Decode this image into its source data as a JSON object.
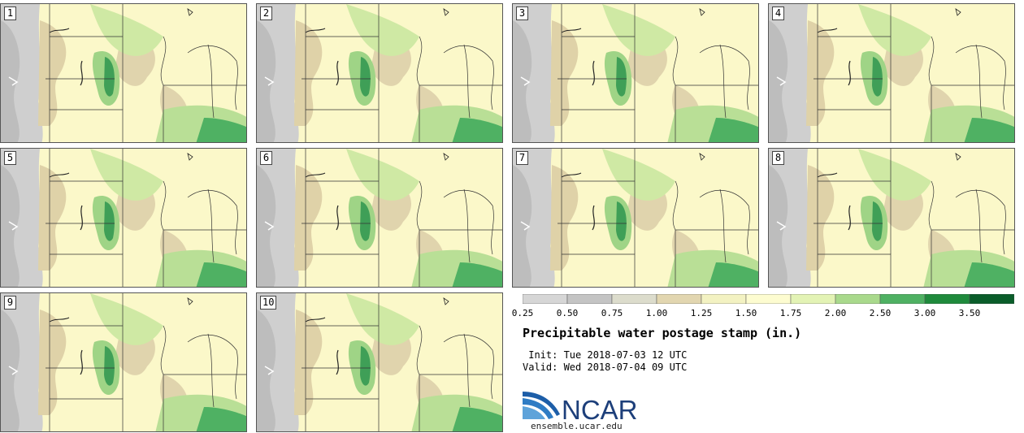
{
  "panels": [
    {
      "label": "1"
    },
    {
      "label": "2"
    },
    {
      "label": "3"
    },
    {
      "label": "4"
    },
    {
      "label": "5"
    },
    {
      "label": "6"
    },
    {
      "label": "7"
    },
    {
      "label": "8"
    },
    {
      "label": "9"
    },
    {
      "label": "10"
    }
  ],
  "legend": {
    "ticks": [
      "0.25",
      "0.50",
      "0.75",
      "1.00",
      "1.25",
      "1.50",
      "1.75",
      "2.00",
      "2.50",
      "3.00",
      "3.50"
    ],
    "colors": [
      "#d6d6d6",
      "#c4c4c4",
      "#dcdccc",
      "#e2d6b0",
      "#f3f2c2",
      "#fdfcd0",
      "#e3f3b5",
      "#a9d98c",
      "#4fb163",
      "#1f8a3c",
      "#0a5d2a",
      "#1c35a8"
    ]
  },
  "title": "Precipitable water postage stamp (in.)",
  "init": " Init: Tue 2018-07-03 12 UTC",
  "valid": "Valid: Wed 2018-07-04 09 UTC",
  "logo": {
    "name": "NCAR",
    "url": "ensemble.ucar.edu"
  }
}
